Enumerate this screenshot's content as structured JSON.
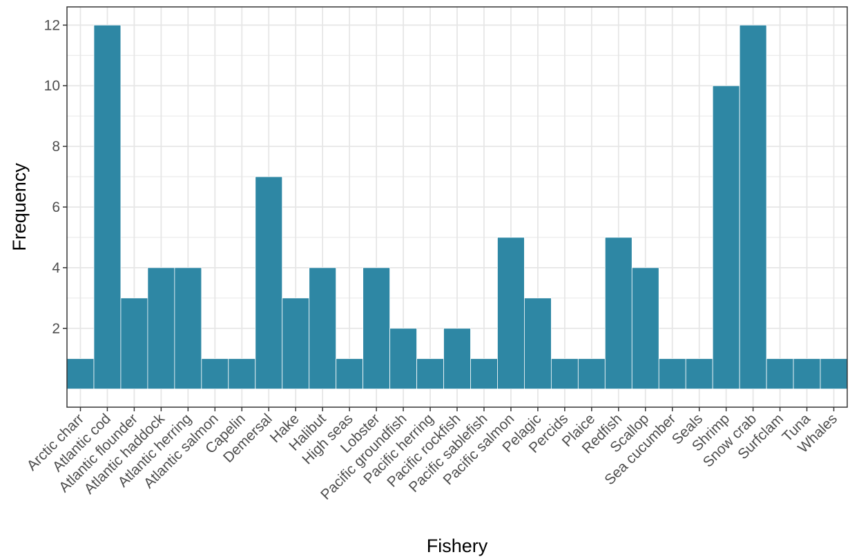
{
  "chart_data": {
    "type": "bar",
    "title": "",
    "xlabel": "Fishery",
    "ylabel": "Frequency",
    "categories": [
      "Arctic charr",
      "Atlantic cod",
      "Atlantic flounder",
      "Atlantic haddock",
      "Atlantic herring",
      "Atlantic salmon",
      "Capelin",
      "Demersal",
      "Hake",
      "Halibut",
      "High seas",
      "Lobster",
      "Pacific groundfish",
      "Pacific herring",
      "Pacific rockfish",
      "Pacific sablefish",
      "Pacific salmon",
      "Pelagic",
      "Percids",
      "Plaice",
      "Redfish",
      "Scallop",
      "Sea cucumber",
      "Seals",
      "Shrimp",
      "Snow crab",
      "Surfclam",
      "Tuna",
      "Whales"
    ],
    "values": [
      1,
      12,
      3,
      4,
      4,
      1,
      1,
      7,
      3,
      4,
      1,
      4,
      2,
      1,
      2,
      1,
      5,
      3,
      1,
      1,
      5,
      4,
      1,
      1,
      10,
      12,
      1,
      1,
      1
    ],
    "ylim": [
      -0.6,
      12.6
    ],
    "yticks": [
      2,
      4,
      6,
      8,
      10,
      12
    ],
    "grid": true,
    "legend": "none",
    "colors": {
      "bar": "#2E87A4",
      "bar_edge": "#ffffff",
      "grid": "#e6e6e6",
      "panel_border": "#333333"
    }
  }
}
